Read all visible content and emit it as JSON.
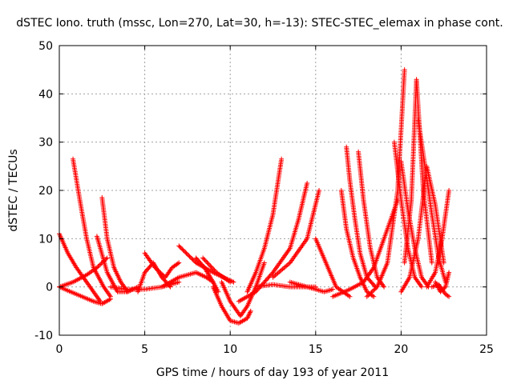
{
  "chart_data": {
    "type": "scatter",
    "title": "dSTEC Iono. truth (mssc, Lon=270, Lat=30, h=-13): STEC-STEC_elemax in phase cont.",
    "xlabel": "GPS time / hours of day 193 of year 2011",
    "ylabel": "dSTEC  / TECUs",
    "xlim": [
      0,
      25
    ],
    "ylim": [
      -10,
      50
    ],
    "xticks": [
      0,
      5,
      10,
      15,
      20,
      25
    ],
    "yticks": [
      -10,
      0,
      10,
      20,
      30,
      40,
      50
    ],
    "xtick_labels": [
      "0",
      "5",
      "10",
      "15",
      "20",
      "25"
    ],
    "ytick_labels": [
      "-10",
      "0",
      "10",
      "20",
      "30",
      "40",
      "50"
    ],
    "grid": true,
    "marker": "+",
    "color": "#ff0000",
    "series": [
      {
        "x": [
          0.0,
          0.5,
          1.0,
          1.5,
          2.0,
          2.4
        ],
        "y": [
          11.0,
          7.0,
          4.0,
          1.5,
          -1.0,
          -3.0
        ]
      },
      {
        "x": [
          0.0,
          0.8,
          1.6,
          2.2,
          2.8
        ],
        "y": [
          0.0,
          1.0,
          2.5,
          4.0,
          6.0
        ]
      },
      {
        "x": [
          0.8,
          1.2,
          1.6,
          2.0,
          2.6,
          3.0
        ],
        "y": [
          26.5,
          18.0,
          10.0,
          4.0,
          0.0,
          -2.0
        ]
      },
      {
        "x": [
          0.0,
          1.0,
          2.0,
          2.5,
          3.0
        ],
        "y": [
          0.0,
          -1.5,
          -3.0,
          -3.5,
          -2.5
        ]
      },
      {
        "x": [
          2.2,
          2.8,
          3.4,
          4.0,
          4.6
        ],
        "y": [
          10.5,
          3.0,
          -1.0,
          -1.0,
          0.0
        ]
      },
      {
        "x": [
          2.5,
          2.8,
          3.2,
          3.6,
          4.0
        ],
        "y": [
          18.5,
          10.0,
          4.0,
          1.0,
          -1.0
        ]
      },
      {
        "x": [
          3.0,
          4.0,
          5.0,
          6.0,
          7.0
        ],
        "y": [
          0.0,
          -0.5,
          -0.5,
          0.0,
          1.0
        ]
      },
      {
        "x": [
          4.6,
          5.0,
          5.5,
          6.0,
          6.5
        ],
        "y": [
          -1.0,
          3.0,
          5.0,
          2.0,
          0.0
        ]
      },
      {
        "x": [
          5.0,
          5.6,
          6.2,
          6.6,
          7.0
        ],
        "y": [
          7.0,
          4.0,
          2.0,
          4.0,
          5.0
        ]
      },
      {
        "x": [
          6.0,
          7.0,
          8.0,
          8.6,
          9.0
        ],
        "y": [
          0.0,
          2.0,
          3.0,
          2.0,
          1.0
        ]
      },
      {
        "x": [
          7.0,
          8.0,
          9.0,
          9.6,
          10.2
        ],
        "y": [
          8.5,
          5.0,
          3.0,
          2.0,
          1.0
        ]
      },
      {
        "x": [
          8.0,
          8.5,
          9.0,
          9.3
        ],
        "y": [
          6.0,
          4.0,
          1.0,
          -1.0
        ]
      },
      {
        "x": [
          8.4,
          9.2,
          10.0
        ],
        "y": [
          6.0,
          3.0,
          1.0
        ]
      },
      {
        "x": [
          9.5,
          10.0,
          10.6,
          11.0,
          11.5,
          12.0
        ],
        "y": [
          1.0,
          -3.0,
          -6.0,
          -4.0,
          0.0,
          5.0
        ]
      },
      {
        "x": [
          9.0,
          9.5,
          10.0,
          10.5,
          11.0,
          11.2
        ],
        "y": [
          0.0,
          -4.0,
          -7.0,
          -7.5,
          -6.5,
          -5.0
        ]
      },
      {
        "x": [
          11.0,
          11.5,
          12.0,
          12.5,
          13.0
        ],
        "y": [
          -1.0,
          3.0,
          8.0,
          15.0,
          26.5
        ]
      },
      {
        "x": [
          11.5,
          12.5,
          13.5,
          14.5,
          15.0
        ],
        "y": [
          0.0,
          0.5,
          0.0,
          0.0,
          0.0
        ]
      },
      {
        "x": [
          10.5,
          11.5,
          12.5,
          13.5,
          14.0,
          14.5
        ],
        "y": [
          -3.0,
          -1.0,
          3.0,
          8.0,
          14.0,
          21.5
        ]
      },
      {
        "x": [
          12.5,
          13.5,
          14.5,
          15.2
        ],
        "y": [
          2.0,
          5.0,
          10.0,
          20.0
        ]
      },
      {
        "x": [
          15.0,
          15.6,
          16.2,
          17.0
        ],
        "y": [
          10.0,
          5.0,
          0.0,
          -2.0
        ]
      },
      {
        "x": [
          13.5,
          14.5,
          15.5,
          16.0
        ],
        "y": [
          1.0,
          0.0,
          -1.0,
          -0.5
        ]
      },
      {
        "x": [
          16.5,
          16.8,
          17.2,
          17.6,
          18.0,
          18.4
        ],
        "y": [
          20.0,
          12.0,
          6.0,
          2.0,
          -1.0,
          -2.0
        ]
      },
      {
        "x": [
          16.8,
          17.0,
          17.3,
          17.6,
          18.0,
          18.5
        ],
        "y": [
          29.0,
          22.0,
          14.0,
          7.0,
          2.0,
          0.0
        ]
      },
      {
        "x": [
          17.5,
          17.8,
          18.2,
          18.6,
          19.0
        ],
        "y": [
          28.0,
          18.0,
          8.0,
          2.0,
          0.0
        ]
      },
      {
        "x": [
          16.0,
          17.0,
          17.8,
          18.4,
          19.0,
          19.8
        ],
        "y": [
          -2.0,
          -0.5,
          1.0,
          4.0,
          10.0,
          18.0
        ]
      },
      {
        "x": [
          18.0,
          18.6,
          19.2,
          19.8,
          20.2
        ],
        "y": [
          -2.0,
          0.0,
          5.0,
          20.0,
          45.0
        ]
      },
      {
        "x": [
          19.6,
          20.0,
          20.4,
          20.8,
          21.2
        ],
        "y": [
          30.0,
          18.0,
          8.0,
          2.0,
          0.0
        ]
      },
      {
        "x": [
          20.0,
          20.4,
          20.8,
          21.2,
          21.6
        ],
        "y": [
          26.0,
          16.0,
          8.0,
          2.0,
          0.0
        ]
      },
      {
        "x": [
          20.0,
          20.5,
          21.0,
          21.5,
          22.0,
          22.5
        ],
        "y": [
          -1.0,
          2.0,
          10.0,
          25.0,
          17.0,
          5.0
        ]
      },
      {
        "x": [
          20.2,
          20.6,
          20.9,
          21.3,
          21.8
        ],
        "y": [
          5.0,
          18.0,
          43.0,
          20.0,
          5.0
        ]
      },
      {
        "x": [
          21.0,
          21.4,
          21.8,
          22.2,
          22.6
        ],
        "y": [
          34.5,
          25.0,
          15.0,
          6.0,
          1.0
        ]
      },
      {
        "x": [
          21.5,
          22.0,
          22.4,
          22.8
        ],
        "y": [
          0.0,
          3.0,
          10.0,
          20.0
        ]
      },
      {
        "x": [
          22.0,
          22.3,
          22.6,
          22.8
        ],
        "y": [
          1.0,
          -1.0,
          0.0,
          3.0
        ]
      },
      {
        "x": [
          21.8,
          22.2,
          22.6,
          22.8
        ],
        "y": [
          0.0,
          0.5,
          -1.5,
          -2.0
        ]
      }
    ]
  }
}
